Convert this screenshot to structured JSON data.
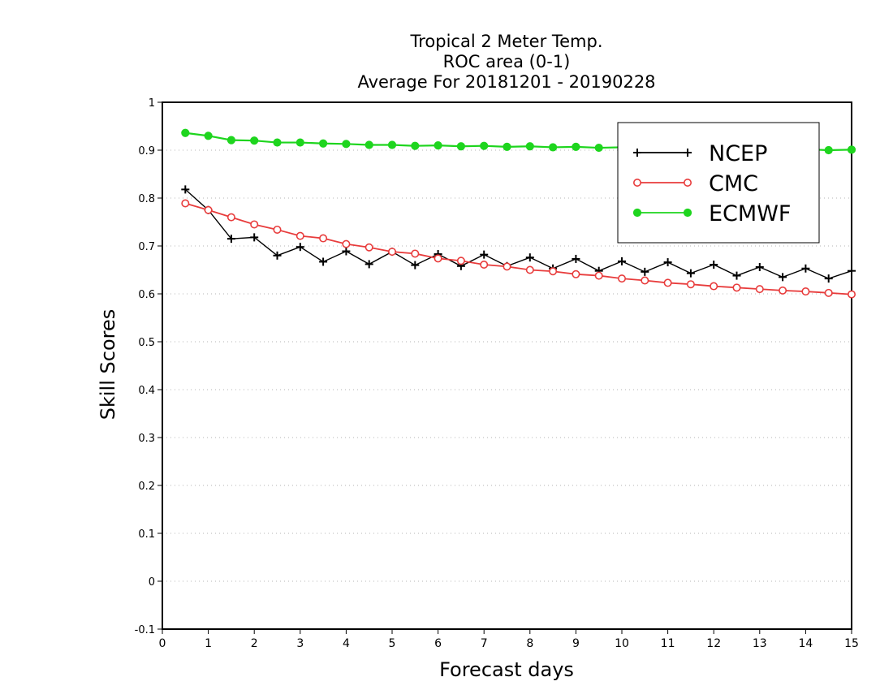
{
  "chart_data": {
    "type": "line",
    "title_lines": [
      "Tropical 2 Meter Temp.",
      "ROC area (0-1)",
      "Average For 20181201 - 20190228"
    ],
    "xlabel": "Forecast days",
    "ylabel": "Skill Scores",
    "xlim": [
      0,
      15
    ],
    "ylim": [
      -0.1,
      1
    ],
    "x_ticks": [
      0,
      1,
      2,
      3,
      4,
      5,
      6,
      7,
      8,
      9,
      10,
      11,
      12,
      13,
      14,
      15
    ],
    "y_ticks": [
      -0.1,
      0,
      0.1,
      0.2,
      0.3,
      0.4,
      0.5,
      0.6,
      0.7,
      0.8,
      0.9,
      1
    ],
    "y_tick_labels": [
      "-0.1",
      "0",
      "0.1",
      "0.2",
      "0.3",
      "0.4",
      "0.5",
      "0.6",
      "0.7",
      "0.8",
      "0.9",
      "1"
    ],
    "grid": "horizontal dotted",
    "legend_position": "top-right",
    "x": [
      0.5,
      1,
      1.5,
      2,
      2.5,
      3,
      3.5,
      4,
      4.5,
      5,
      5.5,
      6,
      6.5,
      7,
      7.5,
      8,
      8.5,
      9,
      9.5,
      10,
      10.5,
      11,
      11.5,
      12,
      12.5,
      13,
      13.5,
      14,
      14.5,
      15
    ],
    "series": [
      {
        "name": "NCEP",
        "color": "#000000",
        "marker": "plus",
        "values": [
          0.818,
          0.775,
          0.715,
          0.718,
          0.68,
          0.698,
          0.667,
          0.689,
          0.662,
          0.688,
          0.66,
          0.683,
          0.658,
          0.682,
          0.658,
          0.676,
          0.653,
          0.673,
          0.648,
          0.668,
          0.646,
          0.666,
          0.643,
          0.661,
          0.638,
          0.656,
          0.635,
          0.653,
          0.632,
          0.648
        ]
      },
      {
        "name": "CMC",
        "color": "#e83c3c",
        "marker": "open-circle",
        "values": [
          0.789,
          0.775,
          0.76,
          0.745,
          0.734,
          0.721,
          0.716,
          0.704,
          0.697,
          0.688,
          0.684,
          0.674,
          0.669,
          0.661,
          0.657,
          0.65,
          0.647,
          0.641,
          0.638,
          0.632,
          0.628,
          0.623,
          0.62,
          0.616,
          0.613,
          0.61,
          0.607,
          0.605,
          0.602,
          0.599
        ]
      },
      {
        "name": "ECMWF",
        "color": "#1ed51e",
        "marker": "filled-circle",
        "values": [
          0.936,
          0.93,
          0.921,
          0.92,
          0.916,
          0.916,
          0.914,
          0.913,
          0.911,
          0.911,
          0.909,
          0.91,
          0.908,
          0.909,
          0.907,
          0.908,
          0.906,
          0.907,
          0.905,
          0.906,
          0.904,
          0.905,
          0.903,
          0.904,
          0.902,
          0.903,
          0.901,
          0.902,
          0.9,
          0.901
        ]
      }
    ]
  }
}
